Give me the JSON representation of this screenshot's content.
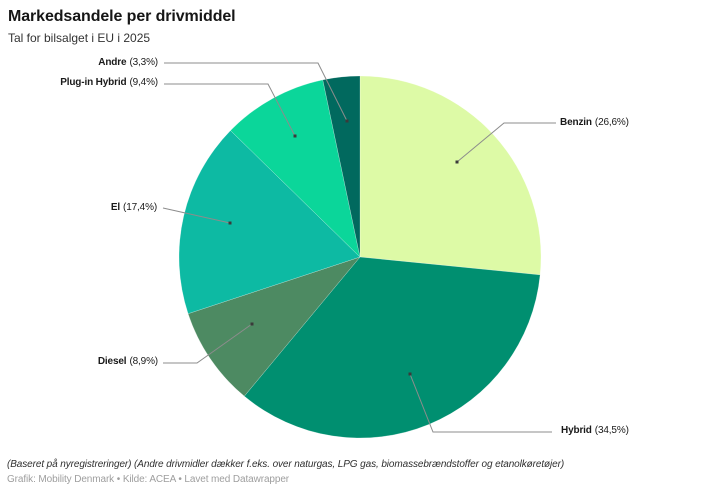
{
  "header": {
    "title": "Markedsandele per drivmiddel",
    "subtitle": "Tal for bilsalget i EU i 2025"
  },
  "footer": {
    "footnote": "(Baseret på nyregistreringer) (Andre drivmidler dækker f.eks. over naturgas, LPG gas, biomassebrændstoffer og etanolkøretøjer)",
    "attribution": "Grafik: Mobility Denmark • Kilde: ACEA • Lavet med Datawrapper"
  },
  "chart_data": {
    "type": "pie",
    "title": "Markedsandele per drivmiddel",
    "subtitle": "Tal for bilsalget i EU i 2025",
    "unit": "%",
    "start_angle_deg": 0,
    "direction": "clockwise",
    "legend_position": "callout-labels",
    "slices": [
      {
        "label": "Benzin",
        "value": 26.6,
        "pct_label": "(26,6%)",
        "color": "#ddfaa6"
      },
      {
        "label": "Hybrid",
        "value": 34.5,
        "pct_label": "(34,5%)",
        "color": "#008f70"
      },
      {
        "label": "Diesel",
        "value": 8.9,
        "pct_label": "(8,9%)",
        "color": "#4d8a62"
      },
      {
        "label": "El",
        "value": 17.4,
        "pct_label": "(17,4%)",
        "color": "#0dbaa3"
      },
      {
        "label": "Plug-in Hybrid",
        "value": 9.4,
        "pct_label": "(9,4%)",
        "color": "#0bd69a"
      },
      {
        "label": "Andre",
        "value": 3.3,
        "pct_label": "(3,3%)",
        "color": "#01695e"
      }
    ],
    "callout_line_color": "#8c8c8c",
    "callout_dot_color": "#3a3a3a"
  }
}
